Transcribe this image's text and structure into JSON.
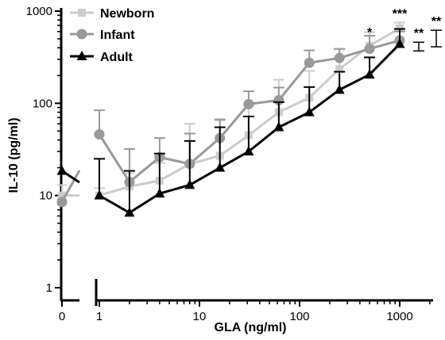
{
  "chart_data": {
    "type": "line",
    "xlabel": "GLA (ng/ml)",
    "ylabel": "IL-10 (pg/ml)",
    "x_scale": "log",
    "y_scale": "log",
    "xlim": [
      1,
      1000
    ],
    "ylim": [
      1,
      1000
    ],
    "x_ticks": [
      "0",
      "1",
      "10",
      "100",
      "1000"
    ],
    "y_ticks": [
      "1",
      "10",
      "100",
      "1000"
    ],
    "legend_position": "top-left",
    "x_zero": 0,
    "x": [
      1,
      2,
      4,
      8,
      16,
      31,
      62,
      125,
      250,
      500,
      1000
    ],
    "series": [
      {
        "name": "Newborn",
        "color": "#cccccc",
        "marker": "square",
        "zero": {
          "value": 10,
          "error": 3
        },
        "values": [
          10,
          12.5,
          14.5,
          22,
          27,
          45,
          80,
          115,
          235,
          420,
          650
        ],
        "errors": [
          2,
          5,
          8,
          38,
          38,
          50,
          100,
          110,
          150,
          170,
          100
        ]
      },
      {
        "name": "Infant",
        "color": "#999999",
        "marker": "circle",
        "zero": {
          "value": 8.5,
          "error": 0
        },
        "values": [
          46,
          14,
          26,
          22,
          42,
          98,
          108,
          275,
          310,
          390,
          480
        ],
        "errors": [
          38,
          18,
          16,
          25,
          25,
          37,
          40,
          100,
          80,
          150,
          120
        ]
      },
      {
        "name": "Adult",
        "color": "#000000",
        "marker": "triangle",
        "zero": {
          "value": 18.5,
          "error": 0
        },
        "values": [
          10,
          6.5,
          10.5,
          13,
          20,
          30,
          55,
          80,
          140,
          205,
          440
        ],
        "errors": [
          15,
          12,
          18,
          26,
          35,
          42,
          48,
          70,
          80,
          110,
          200
        ]
      }
    ],
    "annotations": [
      {
        "text": "*",
        "x": 500,
        "y": 600
      },
      {
        "text": "***",
        "x": 1000,
        "y": 950
      },
      {
        "text": "**",
        "bracket": "inner",
        "y_low": 370,
        "y_high": 460
      },
      {
        "text": "**",
        "bracket": "outer",
        "y_low": 410,
        "y_high": 620
      }
    ]
  }
}
